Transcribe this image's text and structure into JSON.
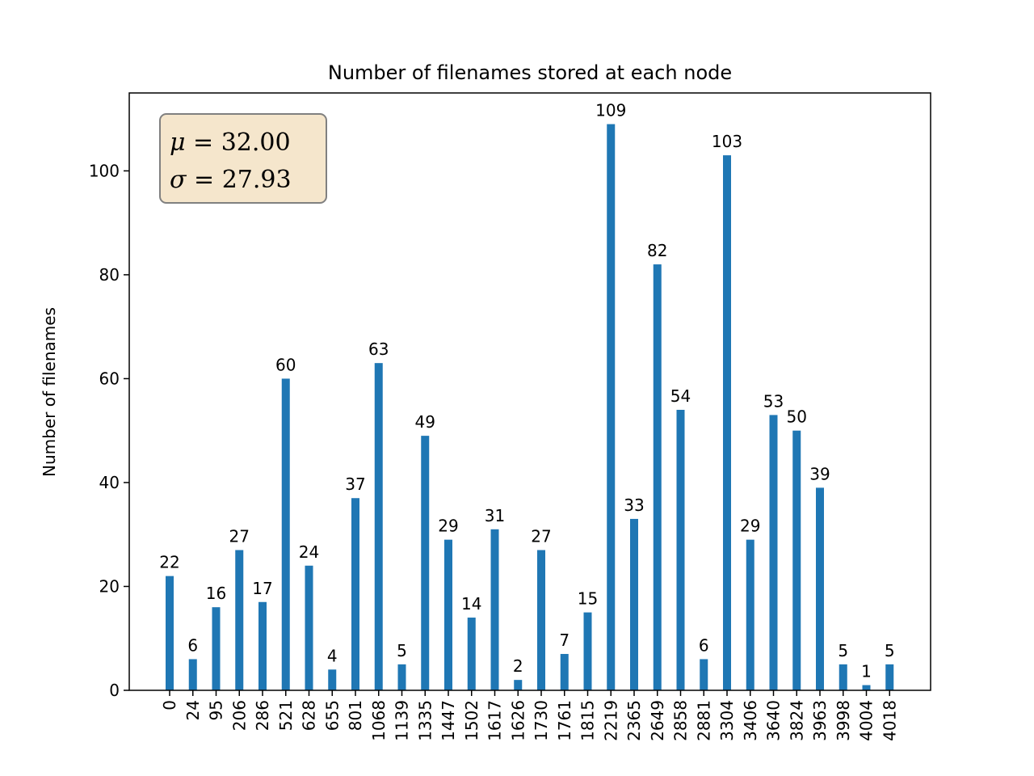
{
  "chart_data": {
    "type": "bar",
    "title": "Number of filenames stored at each node",
    "xlabel": "",
    "ylabel": "Number of filenames",
    "categories": [
      "0",
      "24",
      "95",
      "206",
      "286",
      "521",
      "628",
      "655",
      "801",
      "1068",
      "1139",
      "1335",
      "1447",
      "1502",
      "1617",
      "1626",
      "1730",
      "1761",
      "1815",
      "2219",
      "2365",
      "2649",
      "2858",
      "2881",
      "3304",
      "3406",
      "3640",
      "3824",
      "3963",
      "3998",
      "4004",
      "4018"
    ],
    "values": [
      22,
      6,
      16,
      27,
      17,
      60,
      24,
      4,
      37,
      63,
      5,
      49,
      29,
      14,
      31,
      2,
      27,
      7,
      15,
      109,
      33,
      82,
      54,
      6,
      103,
      29,
      53,
      50,
      39,
      5,
      1,
      5
    ],
    "ylim": [
      0,
      115
    ],
    "yticks": [
      0,
      20,
      40,
      60,
      80,
      100
    ],
    "bar_color": "#1f77b4",
    "stats_box": {
      "mu_symbol": "μ",
      "mu_value": "32.00",
      "sigma_symbol": "σ",
      "sigma_value": "27.93",
      "box_fill": "#f5e6cc",
      "box_edge": "#808080"
    },
    "grid": false
  }
}
